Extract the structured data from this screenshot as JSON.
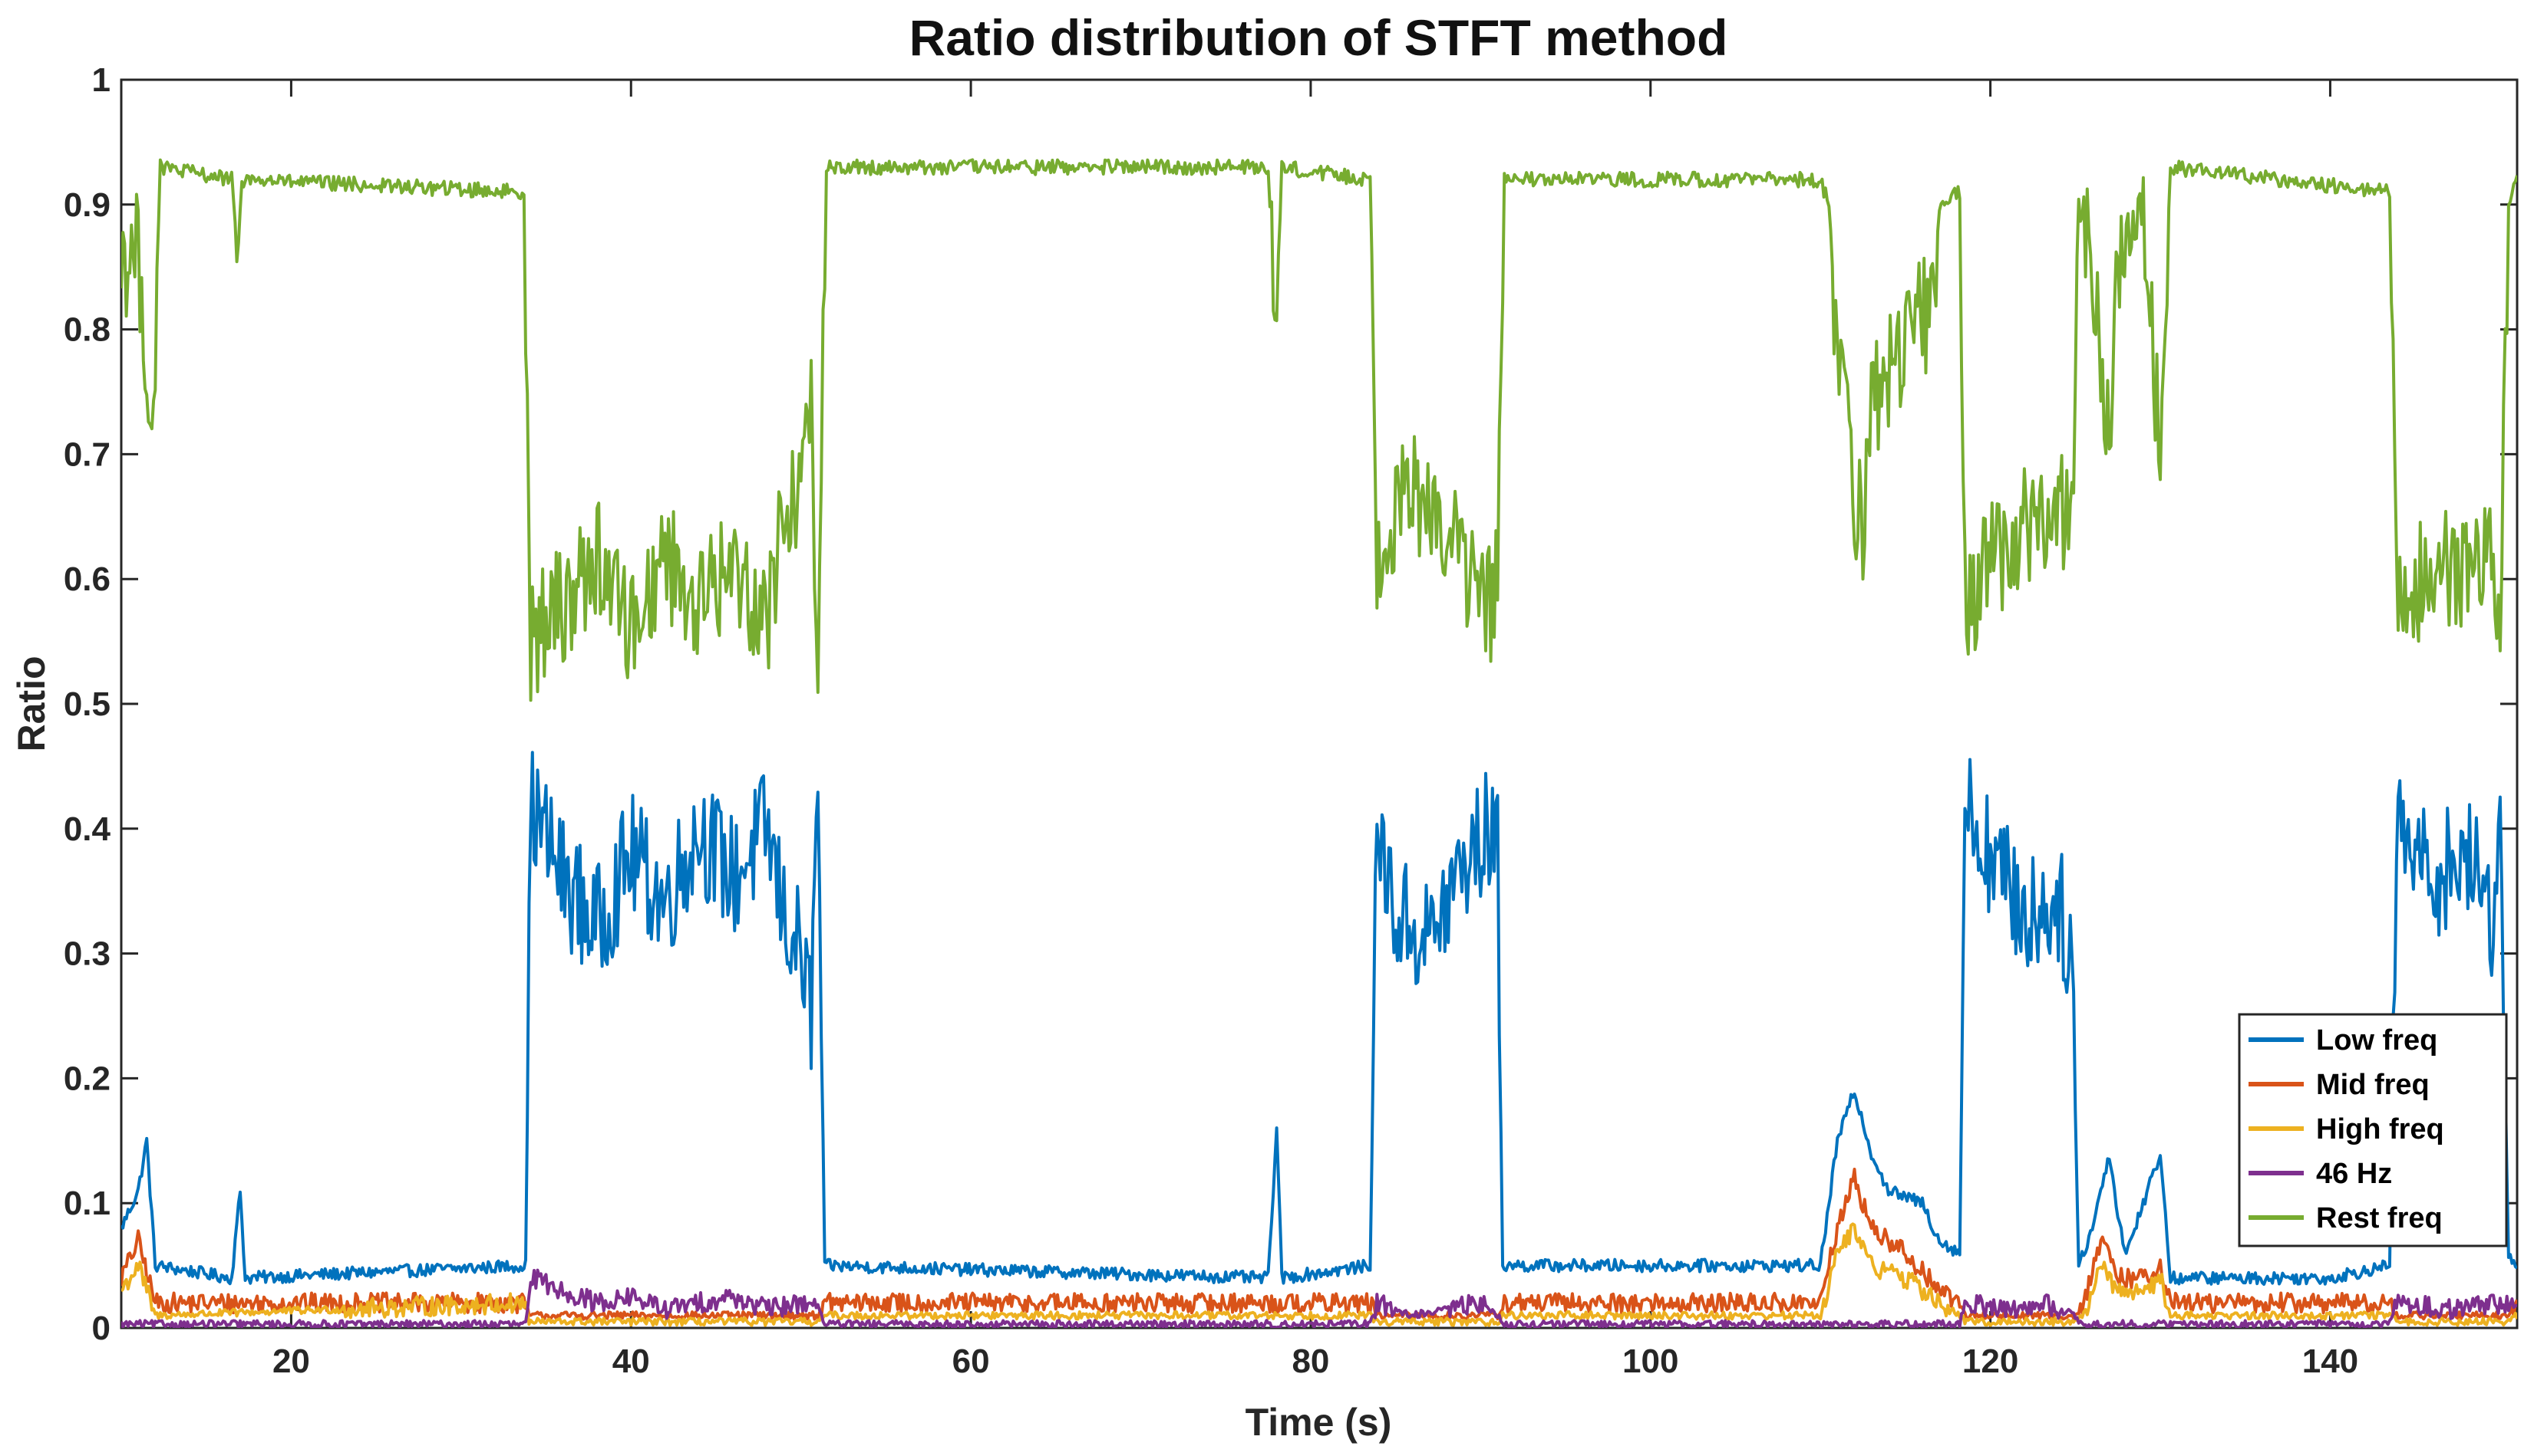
{
  "chart_data": {
    "type": "line",
    "title": "Ratio distribution of STFT method",
    "xlabel": "Time (s)",
    "ylabel": "Ratio",
    "xlim": [
      10,
      151
    ],
    "ylim": [
      0,
      1
    ],
    "xticks": [
      20,
      40,
      60,
      80,
      100,
      120,
      140
    ],
    "yticks": [
      0,
      0.1,
      0.2,
      0.3,
      0.4,
      0.5,
      0.6,
      0.7,
      0.8,
      0.9,
      1
    ],
    "ytick_labels": [
      "0",
      "0.1",
      "0.2",
      "0.3",
      "0.4",
      "0.5",
      "0.6",
      "0.7",
      "0.8",
      "0.9",
      "1"
    ],
    "legend_position": "bottom-right",
    "series": [
      {
        "name": "Low freq",
        "color": "#0072BD",
        "segments": [
          [
            10,
            0.08
          ],
          [
            11,
            0.11
          ],
          [
            11.5,
            0.15
          ],
          [
            12,
            0.05
          ],
          [
            16.5,
            0.04
          ],
          [
            17,
            0.11
          ],
          [
            17.3,
            0.04
          ],
          [
            33.8,
            0.05
          ],
          [
            34.1,
            0.42
          ],
          [
            36,
            0.36
          ],
          [
            38,
            0.32
          ],
          [
            40,
            0.38
          ],
          [
            42,
            0.34
          ],
          [
            44,
            0.4
          ],
          [
            46,
            0.36
          ],
          [
            48,
            0.4
          ],
          [
            49,
            0.33
          ],
          [
            50,
            0.3
          ],
          [
            50.6,
            0.25
          ],
          [
            51,
            0.44
          ],
          [
            51.4,
            0.05
          ],
          [
            77.5,
            0.04
          ],
          [
            78,
            0.16
          ],
          [
            78.3,
            0.04
          ],
          [
            83.5,
            0.05
          ],
          [
            83.9,
            0.4
          ],
          [
            85,
            0.33
          ],
          [
            87,
            0.31
          ],
          [
            89,
            0.37
          ],
          [
            90.5,
            0.4
          ],
          [
            91,
            0.38
          ],
          [
            91.3,
            0.05
          ],
          [
            110,
            0.05
          ],
          [
            111,
            0.15
          ],
          [
            112,
            0.19
          ],
          [
            113,
            0.14
          ],
          [
            114,
            0.11
          ],
          [
            116,
            0.1
          ],
          [
            117,
            0.07
          ],
          [
            118.2,
            0.06
          ],
          [
            118.5,
            0.42
          ],
          [
            120,
            0.38
          ],
          [
            122,
            0.33
          ],
          [
            124,
            0.34
          ],
          [
            124.8,
            0.3
          ],
          [
            125.2,
            0.05
          ],
          [
            126,
            0.08
          ],
          [
            127,
            0.14
          ],
          [
            127.5,
            0.09
          ],
          [
            128,
            0.06
          ],
          [
            129,
            0.1
          ],
          [
            130,
            0.14
          ],
          [
            130.6,
            0.04
          ],
          [
            140,
            0.04
          ],
          [
            143.5,
            0.05
          ],
          [
            143.9,
            0.4
          ],
          [
            146,
            0.36
          ],
          [
            148,
            0.38
          ],
          [
            149.5,
            0.33
          ],
          [
            150,
            0.4
          ],
          [
            150.5,
            0.06
          ],
          [
            151,
            0.05
          ]
        ]
      },
      {
        "name": "Mid freq",
        "color": "#D95319",
        "segments": [
          [
            10,
            0.04
          ],
          [
            11,
            0.07
          ],
          [
            12,
            0.02
          ],
          [
            33.8,
            0.02
          ],
          [
            34,
            0.01
          ],
          [
            51,
            0.01
          ],
          [
            51.4,
            0.02
          ],
          [
            83.5,
            0.02
          ],
          [
            83.9,
            0.01
          ],
          [
            91,
            0.01
          ],
          [
            91.3,
            0.02
          ],
          [
            110,
            0.02
          ],
          [
            111,
            0.08
          ],
          [
            112,
            0.12
          ],
          [
            113,
            0.08
          ],
          [
            115,
            0.06
          ],
          [
            117,
            0.03
          ],
          [
            118.2,
            0.02
          ],
          [
            118.5,
            0.01
          ],
          [
            125,
            0.01
          ],
          [
            125.5,
            0.02
          ],
          [
            126.5,
            0.07
          ],
          [
            127.5,
            0.04
          ],
          [
            129,
            0.04
          ],
          [
            130,
            0.05
          ],
          [
            130.6,
            0.02
          ],
          [
            143.5,
            0.02
          ],
          [
            143.9,
            0.01
          ],
          [
            150.5,
            0.01
          ],
          [
            151,
            0.02
          ]
        ]
      },
      {
        "name": "High freq",
        "color": "#EDB120",
        "segments": [
          [
            10,
            0.03
          ],
          [
            11,
            0.05
          ],
          [
            12,
            0.01
          ],
          [
            33.8,
            0.02
          ],
          [
            34,
            0.005
          ],
          [
            51,
            0.005
          ],
          [
            51.4,
            0.01
          ],
          [
            83.5,
            0.01
          ],
          [
            83.9,
            0.005
          ],
          [
            91,
            0.005
          ],
          [
            91.3,
            0.01
          ],
          [
            110,
            0.01
          ],
          [
            111,
            0.06
          ],
          [
            112,
            0.08
          ],
          [
            113,
            0.05
          ],
          [
            115,
            0.04
          ],
          [
            117,
            0.02
          ],
          [
            118.2,
            0.01
          ],
          [
            118.5,
            0.005
          ],
          [
            125,
            0.005
          ],
          [
            125.5,
            0.01
          ],
          [
            126.5,
            0.05
          ],
          [
            127.5,
            0.03
          ],
          [
            129,
            0.03
          ],
          [
            130,
            0.04
          ],
          [
            130.6,
            0.01
          ],
          [
            143.5,
            0.01
          ],
          [
            143.9,
            0.005
          ],
          [
            150.5,
            0.005
          ],
          [
            151,
            0.01
          ]
        ]
      },
      {
        "name": "46 Hz",
        "color": "#7E2F8E",
        "segments": [
          [
            10,
            0.003
          ],
          [
            33.8,
            0.003
          ],
          [
            34.2,
            0.04
          ],
          [
            36,
            0.03
          ],
          [
            38,
            0.02
          ],
          [
            40,
            0.025
          ],
          [
            42,
            0.015
          ],
          [
            44,
            0.02
          ],
          [
            46,
            0.025
          ],
          [
            48,
            0.015
          ],
          [
            50,
            0.02
          ],
          [
            51,
            0.02
          ],
          [
            51.4,
            0.003
          ],
          [
            83.5,
            0.003
          ],
          [
            83.9,
            0.02
          ],
          [
            86,
            0.01
          ],
          [
            88,
            0.015
          ],
          [
            90,
            0.02
          ],
          [
            91,
            0.01
          ],
          [
            91.3,
            0.003
          ],
          [
            110,
            0.003
          ],
          [
            118.2,
            0.003
          ],
          [
            118.5,
            0.02
          ],
          [
            121,
            0.015
          ],
          [
            123,
            0.02
          ],
          [
            125,
            0.01
          ],
          [
            125.3,
            0.003
          ],
          [
            143.5,
            0.003
          ],
          [
            143.9,
            0.02
          ],
          [
            147,
            0.015
          ],
          [
            150.5,
            0.02
          ],
          [
            151,
            0.02
          ]
        ]
      },
      {
        "name": "Rest freq",
        "color": "#77AC30",
        "segments": [
          [
            10,
            0.86
          ],
          [
            11,
            0.86
          ],
          [
            11.5,
            0.78
          ],
          [
            11.8,
            0.7
          ],
          [
            12.3,
            0.93
          ],
          [
            16.5,
            0.92
          ],
          [
            16.8,
            0.86
          ],
          [
            17.1,
            0.92
          ],
          [
            33.7,
            0.91
          ],
          [
            34.1,
            0.55
          ],
          [
            36,
            0.58
          ],
          [
            38,
            0.62
          ],
          [
            40,
            0.56
          ],
          [
            42,
            0.62
          ],
          [
            44,
            0.58
          ],
          [
            46,
            0.61
          ],
          [
            48,
            0.57
          ],
          [
            49,
            0.65
          ],
          [
            50,
            0.68
          ],
          [
            50.6,
            0.73
          ],
          [
            51,
            0.55
          ],
          [
            51.5,
            0.93
          ],
          [
            77.5,
            0.93
          ],
          [
            78,
            0.8
          ],
          [
            78.3,
            0.93
          ],
          [
            83.5,
            0.92
          ],
          [
            83.9,
            0.62
          ],
          [
            85,
            0.66
          ],
          [
            87,
            0.67
          ],
          [
            89,
            0.61
          ],
          [
            90.5,
            0.58
          ],
          [
            91,
            0.6
          ],
          [
            91.4,
            0.92
          ],
          [
            110,
            0.92
          ],
          [
            110.5,
            0.9
          ],
          [
            111,
            0.78
          ],
          [
            112,
            0.67
          ],
          [
            112.5,
            0.63
          ],
          [
            113,
            0.74
          ],
          [
            115,
            0.79
          ],
          [
            116.5,
            0.82
          ],
          [
            117,
            0.9
          ],
          [
            118.2,
            0.91
          ],
          [
            118.5,
            0.58
          ],
          [
            120,
            0.61
          ],
          [
            122,
            0.64
          ],
          [
            124,
            0.66
          ],
          [
            124.8,
            0.65
          ],
          [
            125.2,
            0.9
          ],
          [
            126,
            0.84
          ],
          [
            127,
            0.7
          ],
          [
            127.5,
            0.86
          ],
          [
            129,
            0.88
          ],
          [
            130,
            0.71
          ],
          [
            130.6,
            0.93
          ],
          [
            143.5,
            0.91
          ],
          [
            143.9,
            0.58
          ],
          [
            146,
            0.61
          ],
          [
            148,
            0.6
          ],
          [
            149.5,
            0.62
          ],
          [
            150,
            0.58
          ],
          [
            150.5,
            0.9
          ],
          [
            151,
            0.92
          ]
        ]
      }
    ]
  }
}
